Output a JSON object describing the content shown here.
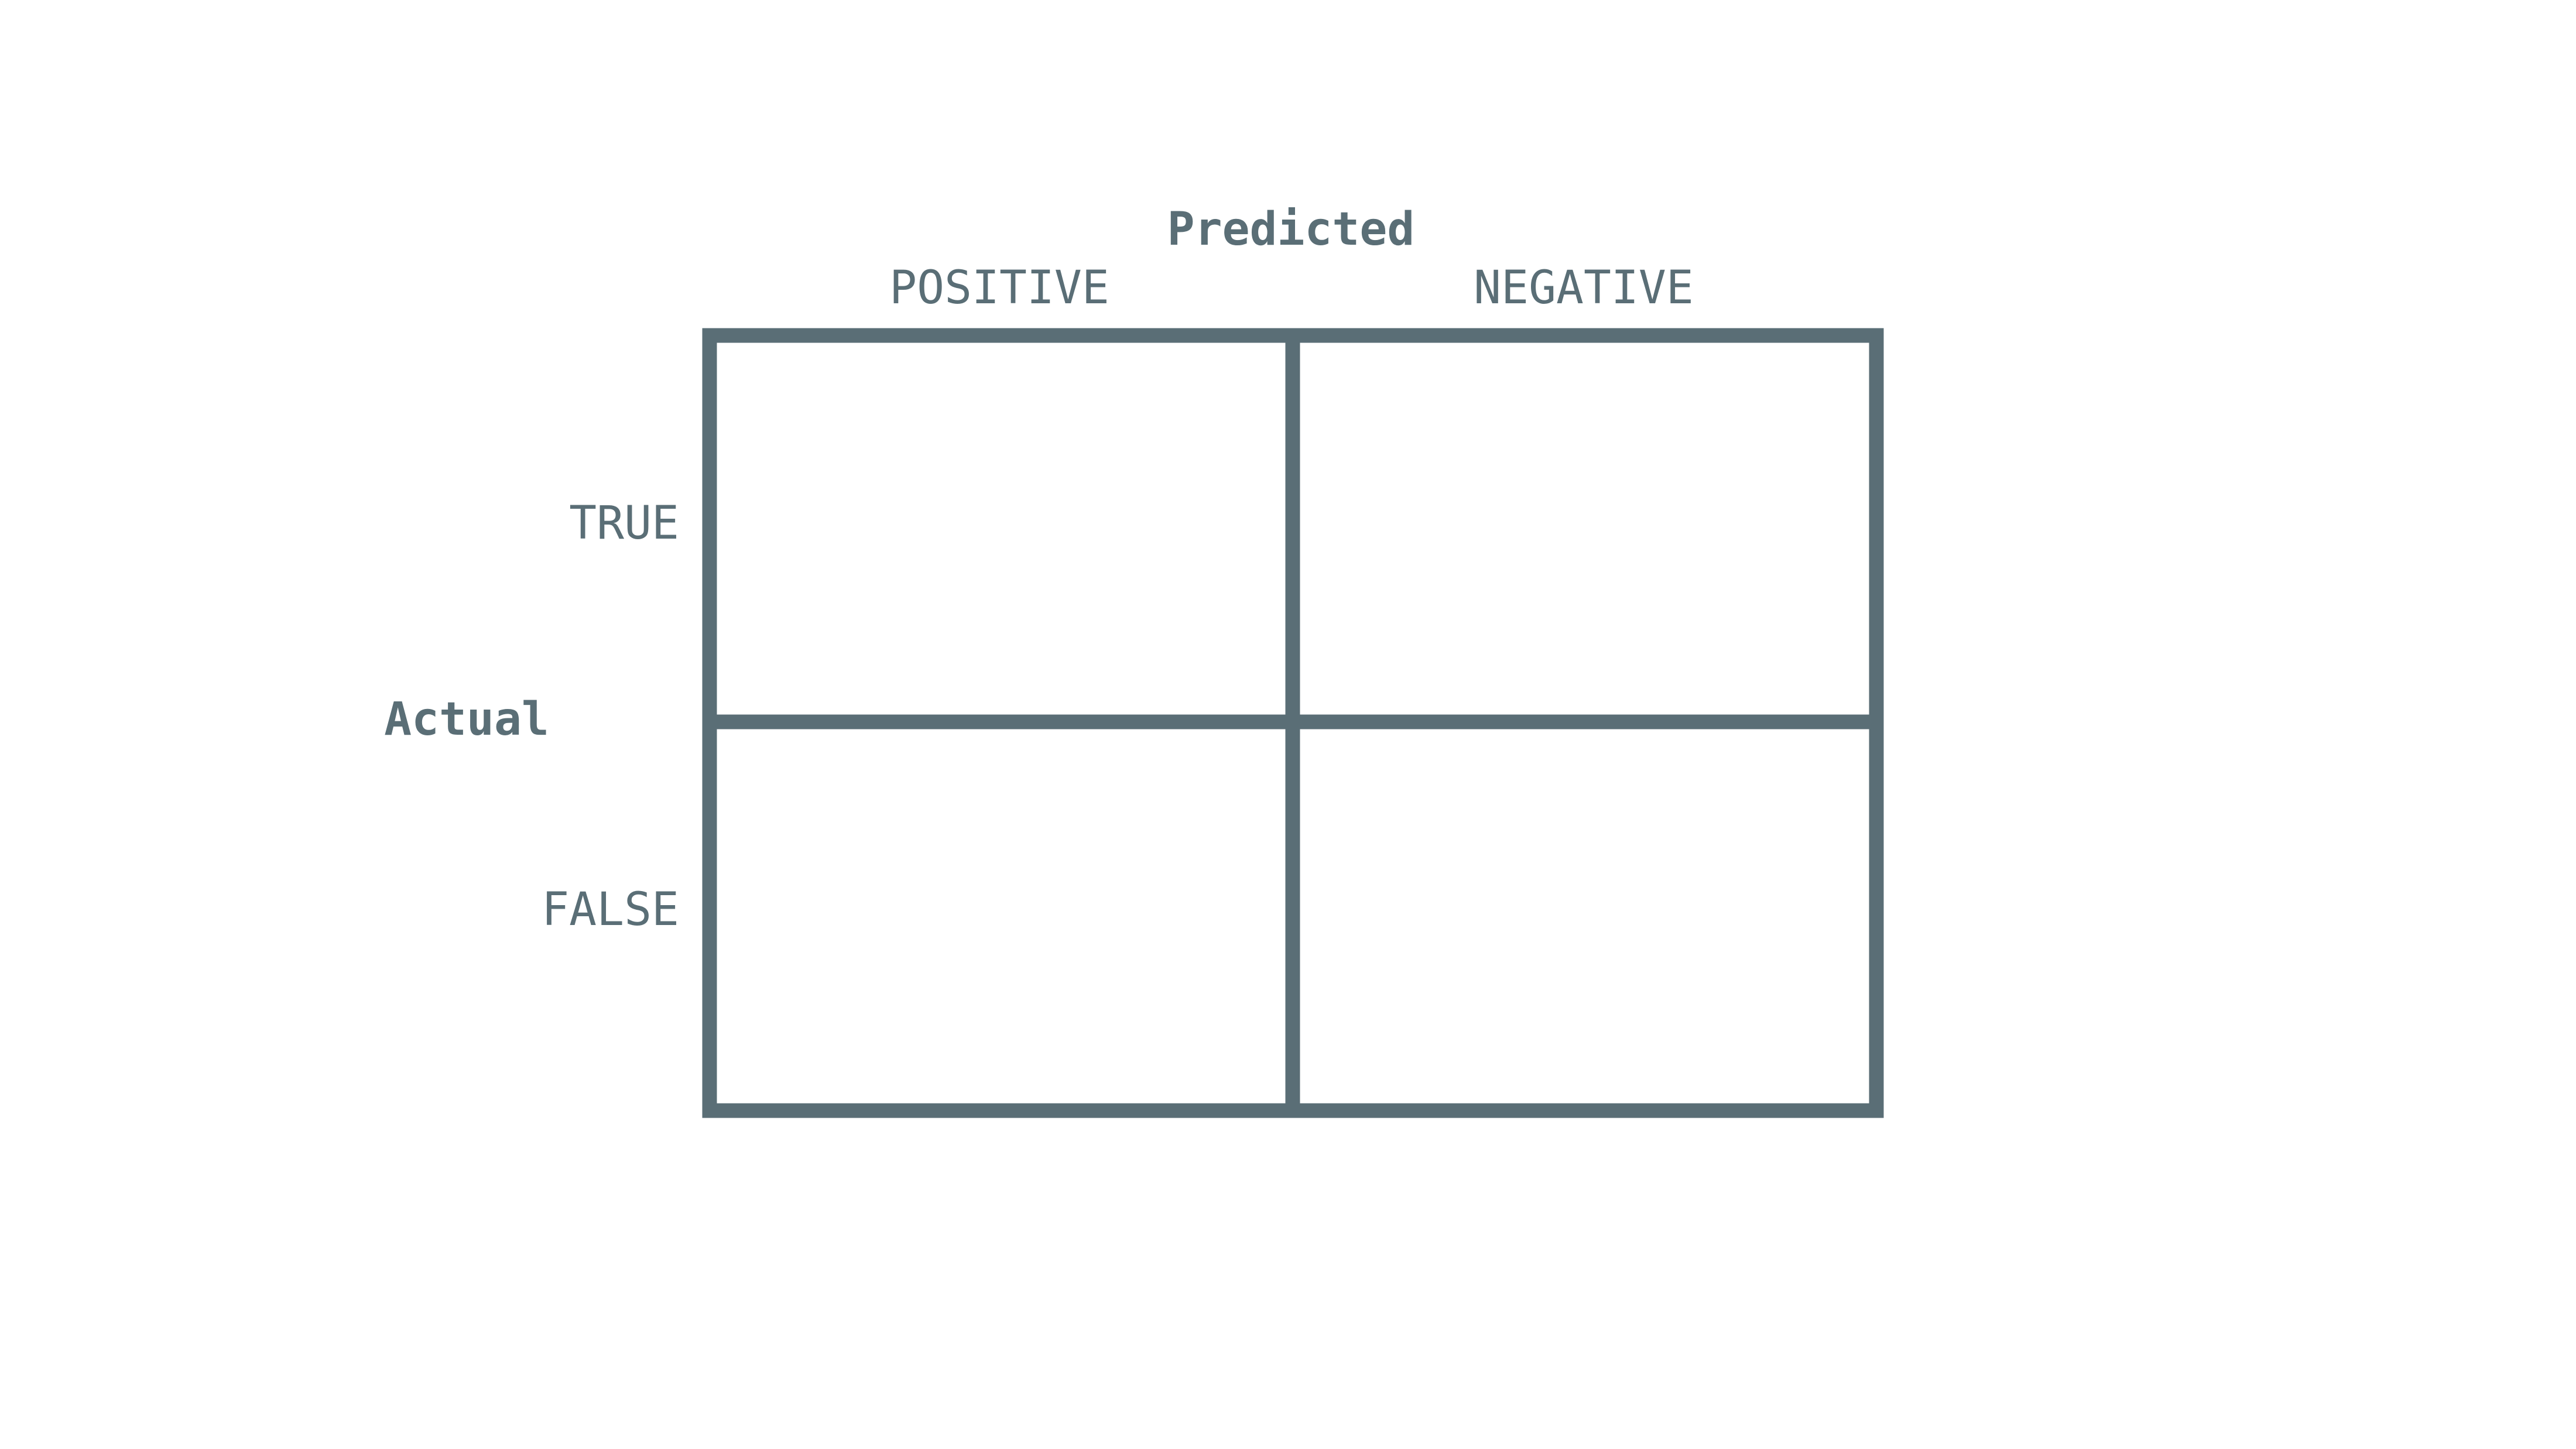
{
  "diagram": {
    "predicted_title": "Predicted",
    "actual_title": "Actual",
    "columns": [
      "POSITIVE",
      "NEGATIVE"
    ],
    "rows": [
      "TRUE",
      "FALSE"
    ],
    "line_color": "#5a6e76",
    "text_color": "#5a6e76"
  }
}
